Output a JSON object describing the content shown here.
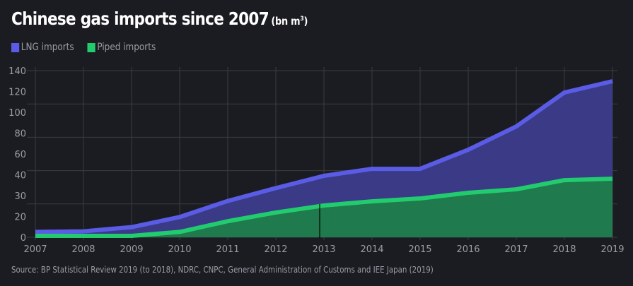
{
  "title": {
    "main": "Chinese gas imports since 2007",
    "unit_prefix": "(bn m",
    "unit_sup": "3",
    "unit_suffix": ")"
  },
  "legend": [
    {
      "label": "LNG imports",
      "color": "#5b5ce6"
    },
    {
      "label": "Piped imports",
      "color": "#22cc6e"
    }
  ],
  "source": "Source: BP Statistical Review 2019 (to 2018), NDRC, CNPC, General Administration of Customs and IEE Japan (2019)",
  "colors": {
    "background": "#1b1c22",
    "grid": "#3a3c44",
    "lng_line": "#5b5ce6",
    "lng_fill": "#3b3a86",
    "piped_line": "#22cc6e",
    "piped_fill": "#1f7a4d",
    "tick_text": "#9a9ca4"
  },
  "chart_data": {
    "type": "area",
    "stacked": true,
    "title": "Chinese gas imports since 2007 (bn m³)",
    "xlabel": "",
    "ylabel": "",
    "x": [
      2007,
      2008,
      2009,
      2010,
      2011,
      2012,
      2013,
      2014,
      2015,
      2016,
      2017,
      2018,
      2019
    ],
    "x_tick_labels": [
      "2007",
      "2008",
      "2009",
      "2010",
      "2011",
      "2012",
      "2013",
      "2014",
      "2015",
      "2016",
      "2017",
      "2018",
      "2019"
    ],
    "y_tick_labels": [
      "140",
      "120",
      "100",
      "80",
      "60",
      "40",
      "30",
      "20",
      "0"
    ],
    "ylim": [
      0,
      140
    ],
    "grid": true,
    "legend_position": "top-left",
    "series": [
      {
        "name": "Piped imports",
        "values": [
          0,
          0,
          0.5,
          4.5,
          13.5,
          20.8,
          26.7,
          30.2,
          32.6,
          37.4,
          40.3,
          48.0,
          49.2
        ]
      },
      {
        "name": "LNG imports",
        "values": [
          4.5,
          5.0,
          8.0,
          12.5,
          17.0,
          20.5,
          24.9,
          27.3,
          24.9,
          36.1,
          52.8,
          73.6,
          81.9
        ]
      }
    ],
    "totals": [
      4.5,
      5.0,
      8.5,
      17.0,
      30.5,
      41.3,
      51.6,
      57.5,
      57.5,
      73.5,
      93.1,
      121.6,
      131.1
    ]
  }
}
